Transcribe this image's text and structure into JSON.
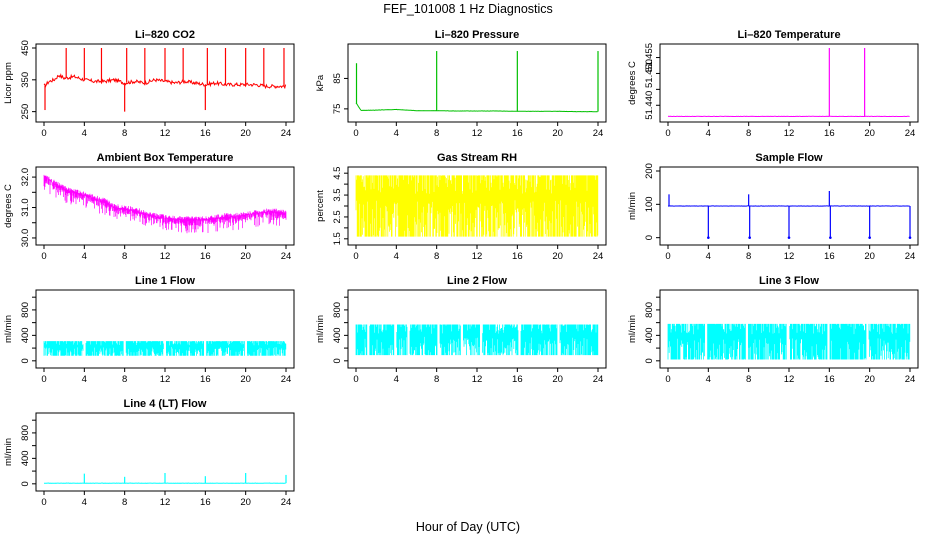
{
  "figure": {
    "title": "FEF_101008  1 Hz Diagnostics",
    "xlabel": "Hour of Day (UTC)"
  },
  "chart_data": [
    {
      "type": "line",
      "title": "Li–820 CO2",
      "ylabel": "Licor ppm",
      "color": "#ff0000",
      "xlim": [
        0,
        24
      ],
      "ylim": [
        230,
        450
      ],
      "xticks": [
        0,
        4,
        8,
        12,
        16,
        20,
        24
      ],
      "yticks": [
        250,
        350,
        450
      ],
      "series": [
        {
          "x": [
            0,
            0.2,
            0.5,
            1,
            1.5,
            2,
            3,
            4,
            5,
            6,
            7,
            8,
            9,
            10,
            11,
            12,
            13,
            14,
            15,
            16,
            17,
            18,
            19,
            20,
            21,
            22,
            23,
            24
          ],
          "y": [
            330,
            335,
            345,
            350,
            365,
            355,
            360,
            350,
            345,
            345,
            350,
            340,
            345,
            340,
            350,
            345,
            340,
            345,
            340,
            335,
            340,
            335,
            335,
            335,
            335,
            330,
            330,
            330
          ]
        }
      ],
      "spikes": [
        {
          "x": 0.1,
          "y": 255
        },
        {
          "x": 2.2,
          "y": 450
        },
        {
          "x": 4,
          "y": 450
        },
        {
          "x": 5.7,
          "y": 450
        },
        {
          "x": 8,
          "y": 250
        },
        {
          "x": 8.2,
          "y": 450
        },
        {
          "x": 10,
          "y": 450
        },
        {
          "x": 12,
          "y": 450
        },
        {
          "x": 13.8,
          "y": 450
        },
        {
          "x": 16,
          "y": 255
        },
        {
          "x": 16.2,
          "y": 450
        },
        {
          "x": 18,
          "y": 450
        },
        {
          "x": 20,
          "y": 450
        },
        {
          "x": 21.8,
          "y": 450
        },
        {
          "x": 23.8,
          "y": 450
        }
      ]
    },
    {
      "type": "line",
      "title": "Li–820 Pressure",
      "ylabel": "kPa",
      "color": "#00c000",
      "xlim": [
        0,
        24
      ],
      "ylim": [
        72,
        95
      ],
      "xticks": [
        0,
        4,
        8,
        12,
        16,
        20,
        24
      ],
      "yticks": [
        75,
        85
      ],
      "series": [
        {
          "x": [
            0,
            0.5,
            2,
            4,
            6,
            8,
            10,
            12,
            14,
            16,
            18,
            20,
            22,
            24
          ],
          "y": [
            77,
            74.5,
            74.6,
            74.8,
            74.4,
            74.4,
            74.3,
            74.3,
            74.3,
            74.2,
            74.2,
            74.2,
            74.1,
            74.1
          ]
        }
      ],
      "spikes": [
        {
          "x": 0.05,
          "y": 90
        },
        {
          "x": 8,
          "y": 94
        },
        {
          "x": 16,
          "y": 94
        },
        {
          "x": 24,
          "y": 94
        }
      ]
    },
    {
      "type": "line",
      "title": "Li–820 Temperature",
      "ylabel": "degrees C",
      "color": "#ff00ff",
      "xlim": [
        0,
        24
      ],
      "ylim": [
        51.436,
        51.458
      ],
      "xticks": [
        0,
        4,
        8,
        12,
        16,
        20,
        24
      ],
      "yticks": [
        51.44,
        51.445,
        51.45,
        51.455
      ],
      "ytick_labels": [
        "51.440",
        "",
        "51.450",
        "51.455"
      ],
      "series": [
        {
          "x": [
            0,
            24
          ],
          "y": [
            51.4365,
            51.4365
          ]
        }
      ],
      "spikes": [
        {
          "x": 16,
          "y": 51.458
        },
        {
          "x": 19.5,
          "y": 51.458
        }
      ]
    },
    {
      "type": "line",
      "title": "Ambient Box Temperature",
      "ylabel": "degrees C",
      "color": "#ff00ff",
      "xlim": [
        0,
        24
      ],
      "ylim": [
        29.9,
        32.2
      ],
      "xticks": [
        0,
        4,
        8,
        12,
        16,
        20,
        24
      ],
      "yticks": [
        30.0,
        30.5,
        31.0,
        31.5,
        32.0
      ],
      "ytick_labels": [
        "30.0",
        "",
        "31.0",
        "",
        "32.0"
      ],
      "series": [
        {
          "x": [
            0,
            0.5,
            1,
            2,
            3,
            4,
            5,
            6,
            7,
            8,
            9,
            10,
            11,
            12,
            13,
            14,
            15,
            16,
            17,
            18,
            19,
            20,
            21,
            22,
            23,
            24
          ],
          "y": [
            32.0,
            31.9,
            31.8,
            31.6,
            31.5,
            31.4,
            31.3,
            31.2,
            31.0,
            30.95,
            30.9,
            30.8,
            30.7,
            30.65,
            30.6,
            30.6,
            30.6,
            30.6,
            30.65,
            30.7,
            30.7,
            30.75,
            30.8,
            30.85,
            30.85,
            30.8
          ]
        }
      ],
      "noise": 0.45
    },
    {
      "type": "line",
      "title": "Gas Stream RH",
      "ylabel": "percent",
      "color": "#ffff00",
      "xlim": [
        0,
        24
      ],
      "ylim": [
        1.4,
        4.6
      ],
      "xticks": [
        0,
        4,
        8,
        12,
        16,
        20,
        24
      ],
      "yticks": [
        1.5,
        2.0,
        2.5,
        3.0,
        3.5,
        4.0,
        4.5
      ],
      "ytick_labels": [
        "1.5",
        "",
        "2.5",
        "",
        "3.5",
        "",
        "4.5"
      ],
      "series": [
        {
          "x": [
            0,
            24
          ],
          "y": [
            4.3,
            4.3
          ]
        }
      ],
      "band": [
        1.6,
        4.4
      ]
    },
    {
      "type": "line",
      "title": "Sample Flow",
      "ylabel": "ml/min",
      "color": "#0000ff",
      "xlim": [
        0,
        24
      ],
      "ylim": [
        -10,
        200
      ],
      "xticks": [
        0,
        4,
        8,
        12,
        16,
        20,
        24
      ],
      "yticks": [
        0,
        100,
        200
      ],
      "series": [
        {
          "x": [
            0,
            24
          ],
          "y": [
            95,
            95
          ]
        }
      ],
      "spikes": [
        {
          "x": 0.1,
          "y": 130
        },
        {
          "x": 4,
          "y": 0
        },
        {
          "x": 8,
          "y": 130
        },
        {
          "x": 8.1,
          "y": 0
        },
        {
          "x": 12,
          "y": 0
        },
        {
          "x": 16,
          "y": 140
        },
        {
          "x": 16.1,
          "y": 0
        },
        {
          "x": 20,
          "y": 0
        },
        {
          "x": 24,
          "y": 0
        }
      ]
    },
    {
      "type": "line",
      "title": "Line 1 Flow",
      "ylabel": "ml/min",
      "color": "#00ffff",
      "xlim": [
        0,
        24
      ],
      "ylim": [
        -50,
        1050
      ],
      "xticks": [
        0,
        4,
        8,
        12,
        16,
        20,
        24
      ],
      "yticks": [
        0,
        200,
        400,
        600,
        800,
        1000
      ],
      "ytick_labels": [
        "0",
        "",
        "400",
        "",
        "800",
        ""
      ],
      "series": [
        {
          "x": [
            0,
            24
          ],
          "y": [
            300,
            300
          ]
        }
      ],
      "band": [
        80,
        310
      ],
      "gaps": [
        4,
        8,
        12,
        16,
        20
      ]
    },
    {
      "type": "line",
      "title": "Line 2 Flow",
      "ylabel": "ml/min",
      "color": "#00ffff",
      "xlim": [
        0,
        24
      ],
      "ylim": [
        -50,
        1050
      ],
      "xticks": [
        0,
        4,
        8,
        12,
        16,
        20,
        24
      ],
      "yticks": [
        0,
        200,
        400,
        600,
        800,
        1000
      ],
      "ytick_labels": [
        "0",
        "",
        "400",
        "",
        "800",
        ""
      ],
      "series": [
        {
          "x": [
            0,
            24
          ],
          "y": [
            550,
            550
          ]
        }
      ],
      "band": [
        90,
        570
      ],
      "gaps": [
        1.2,
        3.9,
        5.2,
        8.2,
        10.5,
        12.4,
        16.2,
        20.1
      ]
    },
    {
      "type": "line",
      "title": "Line 3 Flow",
      "ylabel": "ml/min",
      "color": "#00ffff",
      "xlim": [
        0,
        24
      ],
      "ylim": [
        -50,
        1050
      ],
      "xticks": [
        0,
        4,
        8,
        12,
        16,
        20,
        24
      ],
      "yticks": [
        0,
        200,
        400,
        600,
        800,
        1000
      ],
      "ytick_labels": [
        "0",
        "",
        "400",
        "",
        "800",
        ""
      ],
      "series": [
        {
          "x": [
            0,
            24
          ],
          "y": [
            540,
            540
          ]
        }
      ],
      "band": [
        20,
        580
      ],
      "gaps": [
        3.8,
        7.8,
        11.9,
        15.9,
        19.8
      ]
    },
    {
      "type": "line",
      "title": "Line 4 (LT) Flow",
      "ylabel": "ml/min",
      "color": "#00ffff",
      "xlim": [
        0,
        24
      ],
      "ylim": [
        -50,
        1050
      ],
      "xticks": [
        0,
        4,
        8,
        12,
        16,
        20,
        24
      ],
      "yticks": [
        0,
        200,
        400,
        600,
        800,
        1000
      ],
      "ytick_labels": [
        "0",
        "",
        "400",
        "",
        "800",
        ""
      ],
      "series": [
        {
          "x": [
            0,
            24
          ],
          "y": [
            10,
            10
          ]
        }
      ],
      "spikes": [
        {
          "x": 4,
          "y": 160
        },
        {
          "x": 8,
          "y": 110
        },
        {
          "x": 12,
          "y": 170
        },
        {
          "x": 16,
          "y": 120
        },
        {
          "x": 20,
          "y": 170
        },
        {
          "x": 24,
          "y": 140
        }
      ]
    }
  ]
}
